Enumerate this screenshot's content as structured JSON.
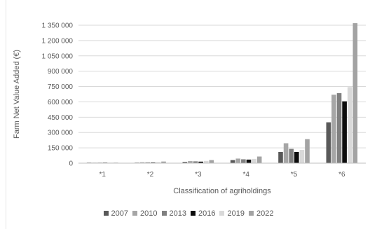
{
  "chart_data": {
    "type": "bar",
    "xlabel": "Classification of agriholdings",
    "ylabel": "Farm Net Value Added (€)",
    "ylim": [
      0,
      1350000
    ],
    "yticks": [
      0,
      150000,
      300000,
      450000,
      600000,
      750000,
      900000,
      1050000,
      1200000,
      1350000
    ],
    "ytick_labels": [
      "0",
      "150 000",
      "300 000",
      "450 000",
      "600 000",
      "750 000",
      "900 000",
      "1 050 000",
      "1 200 000",
      "1 350 000"
    ],
    "categories": [
      "*1",
      "*2",
      "*3",
      "*4",
      "*5",
      "*6"
    ],
    "grid": "horizontal",
    "legend_position": "bottom",
    "series": [
      {
        "name": "2007",
        "color": "#595959",
        "values": [
          1500,
          5000,
          12000,
          30000,
          110000,
          400000
        ]
      },
      {
        "name": "2010",
        "color": "#a6a6a6",
        "values": [
          2500,
          9000,
          20000,
          45000,
          195000,
          670000
        ]
      },
      {
        "name": "2013",
        "color": "#808080",
        "values": [
          2000,
          8000,
          18000,
          38000,
          140000,
          685000
        ]
      },
      {
        "name": "2016",
        "color": "#0d0d0d",
        "values": [
          1800,
          7000,
          15000,
          35000,
          110000,
          605000
        ]
      },
      {
        "name": "2019",
        "color": "#d9d9d9",
        "values": [
          2200,
          10000,
          22000,
          42000,
          130000,
          745000
        ]
      },
      {
        "name": "2022",
        "color": "#a3a3a3",
        "values": [
          3000,
          16000,
          30000,
          65000,
          235000,
          1370000
        ]
      }
    ]
  }
}
